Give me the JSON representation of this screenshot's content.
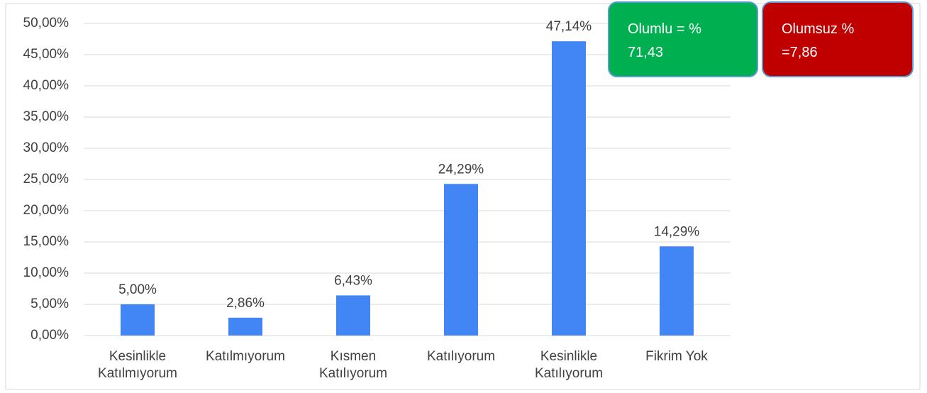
{
  "chart_data": {
    "type": "bar",
    "categories": [
      "Kesinlikle\nKatılmıyorum",
      "Katılmıyorum",
      "Kısmen\nKatılıyorum",
      "Katılıyorum",
      "Kesinlikle\nKatılıyorum",
      "Fikrim Yok"
    ],
    "values": [
      5.0,
      2.86,
      6.43,
      24.29,
      47.14,
      14.29
    ],
    "value_labels": [
      "5,00%",
      "2,86%",
      "6,43%",
      "24,29%",
      "47,14%",
      "14,29%"
    ],
    "color": "#4285f4",
    "ylim": [
      0,
      50
    ],
    "yticks": [
      {
        "value": 0,
        "label": "0,00%"
      },
      {
        "value": 5,
        "label": "5,00%"
      },
      {
        "value": 10,
        "label": "10,00%"
      },
      {
        "value": 15,
        "label": "15,00%"
      },
      {
        "value": 20,
        "label": "20,00%"
      },
      {
        "value": 25,
        "label": "25,00%"
      },
      {
        "value": 30,
        "label": "30,00%"
      },
      {
        "value": 35,
        "label": "35,00%"
      },
      {
        "value": 40,
        "label": "40,00%"
      },
      {
        "value": 45,
        "label": "45,00%"
      },
      {
        "value": 50,
        "label": "50,00%"
      }
    ],
    "grid": true,
    "annotations": [
      {
        "text": "Olumlu = %\n71,43",
        "color": "#00b050"
      },
      {
        "text": "Olumsuz %\n=7,86",
        "color": "#c00000"
      }
    ]
  }
}
